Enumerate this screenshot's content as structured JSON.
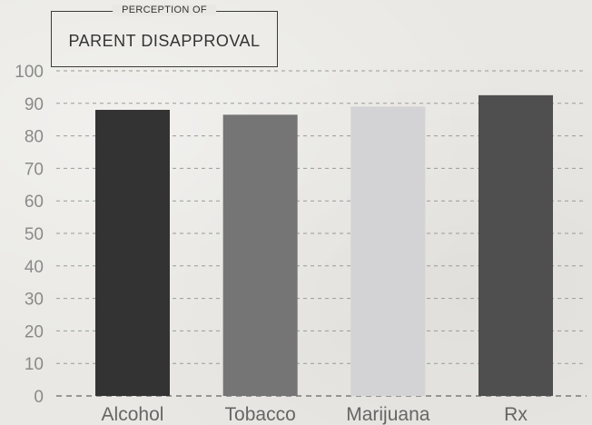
{
  "chart_data": {
    "type": "bar",
    "title": "PARENT DISAPPROVAL",
    "subtitle": "PERCEPTION OF",
    "categories": [
      "Alcohol",
      "Tobacco",
      "Marijuana",
      "Rx"
    ],
    "values": [
      88,
      86.5,
      89,
      92.5
    ],
    "colors": [
      "#333333",
      "#757575",
      "#d3d3d5",
      "#4f4f4f"
    ],
    "ylim": [
      0,
      100
    ],
    "yticks": [
      0,
      10,
      20,
      30,
      40,
      50,
      60,
      70,
      80,
      90,
      100
    ],
    "xlabel": "",
    "ylabel": "",
    "grid": true
  }
}
